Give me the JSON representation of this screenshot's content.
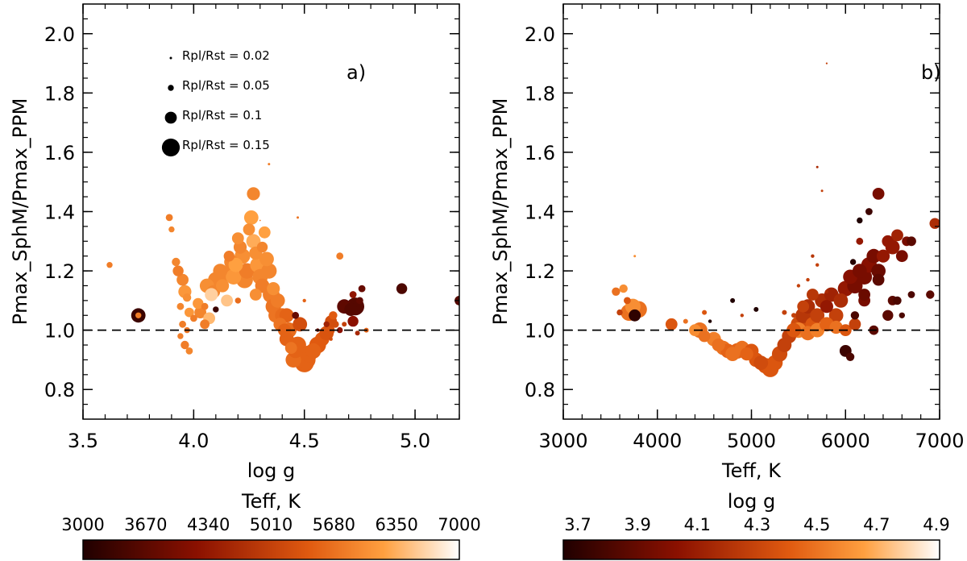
{
  "colors": {
    "axis": "#000000",
    "background": "#ffffff"
  },
  "chart_data": [
    {
      "type": "scatter",
      "panel_label": "a)",
      "xlabel": "log g",
      "ylabel": "Pmax_SphM/Pmax_PPM",
      "xlim": [
        3.5,
        5.2
      ],
      "ylim": [
        0.7,
        2.1
      ],
      "xticks": [
        "3.5",
        "4.0",
        "4.5",
        "5.0"
      ],
      "yticks": [
        "0.8",
        "1.0",
        "1.2",
        "1.4",
        "1.6",
        "1.8",
        "2.0"
      ],
      "reference_line": 1.0,
      "size_legend": [
        {
          "label": "Rpl/Rst  =  0.02",
          "ratio": 0.02
        },
        {
          "label": "Rpl/Rst  =  0.05",
          "ratio": 0.05
        },
        {
          "label": "Rpl/Rst  =  0.1",
          "ratio": 0.1
        },
        {
          "label": "Rpl/Rst  =  0.15",
          "ratio": 0.15
        }
      ],
      "colorbar": {
        "label": "Teff, K",
        "ticks": [
          "3000",
          "3670",
          "4340",
          "5010",
          "5680",
          "6350",
          "7000"
        ],
        "range": [
          3000,
          7000
        ]
      },
      "points": [
        [
          3.62,
          1.22,
          0.05,
          5800
        ],
        [
          3.75,
          1.05,
          0.12,
          3300
        ],
        [
          3.75,
          1.05,
          0.05,
          5800
        ],
        [
          3.89,
          1.38,
          0.06,
          5800
        ],
        [
          3.9,
          1.34,
          0.05,
          5900
        ],
        [
          3.92,
          1.23,
          0.07,
          5900
        ],
        [
          3.93,
          1.2,
          0.09,
          5800
        ],
        [
          3.95,
          1.17,
          0.1,
          5900
        ],
        [
          3.96,
          1.13,
          0.11,
          6100
        ],
        [
          3.97,
          1.11,
          0.07,
          6000
        ],
        [
          3.94,
          1.08,
          0.06,
          5900
        ],
        [
          3.98,
          1.06,
          0.08,
          6100
        ],
        [
          3.95,
          1.02,
          0.06,
          5800
        ],
        [
          3.94,
          0.98,
          0.05,
          5800
        ],
        [
          3.96,
          0.95,
          0.07,
          5800
        ],
        [
          3.98,
          0.93,
          0.06,
          5900
        ],
        [
          3.97,
          1.0,
          0.05,
          5700
        ],
        [
          4.0,
          1.04,
          0.06,
          5800
        ],
        [
          4.02,
          1.09,
          0.09,
          6100
        ],
        [
          4.03,
          1.06,
          0.1,
          5900
        ],
        [
          4.05,
          1.02,
          0.08,
          5800
        ],
        [
          4.07,
          1.04,
          0.1,
          6400
        ],
        [
          4.06,
          1.15,
          0.12,
          6000
        ],
        [
          4.09,
          1.13,
          0.11,
          5900
        ],
        [
          4.1,
          1.17,
          0.13,
          5900
        ],
        [
          4.12,
          1.2,
          0.12,
          5900
        ],
        [
          4.13,
          1.15,
          0.11,
          6000
        ],
        [
          4.15,
          1.19,
          0.13,
          5900
        ],
        [
          4.16,
          1.25,
          0.09,
          5800
        ],
        [
          4.17,
          1.23,
          0.12,
          5900
        ],
        [
          4.18,
          1.18,
          0.13,
          6100
        ],
        [
          4.19,
          1.22,
          0.12,
          6200
        ],
        [
          4.2,
          1.31,
          0.1,
          6000
        ],
        [
          4.21,
          1.28,
          0.11,
          5900
        ],
        [
          4.22,
          1.25,
          0.13,
          6000
        ],
        [
          4.23,
          1.17,
          0.14,
          5900
        ],
        [
          4.24,
          1.2,
          0.13,
          5800
        ],
        [
          4.25,
          1.34,
          0.1,
          6000
        ],
        [
          4.26,
          1.38,
          0.12,
          6200
        ],
        [
          4.27,
          1.46,
          0.11,
          5900
        ],
        [
          4.27,
          1.3,
          0.12,
          6300
        ],
        [
          4.28,
          1.26,
          0.11,
          6000
        ],
        [
          4.29,
          1.22,
          0.13,
          6100
        ],
        [
          4.3,
          1.18,
          0.13,
          5900
        ],
        [
          4.31,
          1.15,
          0.12,
          5800
        ],
        [
          4.31,
          1.28,
          0.09,
          5900
        ],
        [
          4.32,
          1.33,
          0.1,
          6200
        ],
        [
          4.33,
          1.24,
          0.12,
          6000
        ],
        [
          4.34,
          1.2,
          0.13,
          5900
        ],
        [
          4.35,
          1.12,
          0.14,
          5800
        ],
        [
          4.36,
          1.08,
          0.13,
          5700
        ],
        [
          4.37,
          1.05,
          0.12,
          5700
        ],
        [
          4.38,
          1.1,
          0.12,
          5800
        ],
        [
          4.39,
          1.02,
          0.11,
          5700
        ],
        [
          4.4,
          1.05,
          0.12,
          5600
        ],
        [
          4.41,
          1.0,
          0.11,
          5500
        ],
        [
          4.42,
          0.97,
          0.12,
          5500
        ],
        [
          4.43,
          1.0,
          0.13,
          5600
        ],
        [
          4.44,
          0.94,
          0.1,
          5700
        ],
        [
          4.45,
          0.9,
          0.13,
          5600
        ],
        [
          4.46,
          0.93,
          0.12,
          5500
        ],
        [
          4.47,
          0.95,
          0.14,
          5500
        ],
        [
          4.48,
          0.91,
          0.15,
          5600
        ],
        [
          4.5,
          0.89,
          0.16,
          5500
        ],
        [
          4.51,
          0.9,
          0.15,
          5500
        ],
        [
          4.52,
          0.92,
          0.14,
          5500
        ],
        [
          4.54,
          0.93,
          0.13,
          5500
        ],
        [
          4.56,
          0.95,
          0.14,
          5400
        ],
        [
          4.58,
          0.97,
          0.12,
          5400
        ],
        [
          4.6,
          0.99,
          0.12,
          5300
        ],
        [
          4.61,
          1.0,
          0.1,
          5300
        ],
        [
          4.62,
          1.03,
          0.1,
          5200
        ],
        [
          4.63,
          1.05,
          0.07,
          5400
        ],
        [
          4.64,
          1.02,
          0.06,
          5200
        ],
        [
          4.66,
          1.0,
          0.05,
          4200
        ],
        [
          4.68,
          1.08,
          0.12,
          3700
        ],
        [
          4.71,
          1.07,
          0.11,
          3600
        ],
        [
          4.72,
          1.03,
          0.09,
          4200
        ],
        [
          4.72,
          1.12,
          0.06,
          4300
        ],
        [
          4.76,
          1.14,
          0.06,
          3800
        ],
        [
          4.75,
          1.1,
          0.06,
          3700
        ],
        [
          4.73,
          1.08,
          0.15,
          3600
        ],
        [
          4.74,
          0.99,
          0.04,
          4600
        ],
        [
          4.6,
          1.02,
          0.05,
          4500
        ],
        [
          4.94,
          1.14,
          0.09,
          3500
        ],
        [
          5.2,
          1.1,
          0.08,
          3600
        ],
        [
          4.66,
          1.25,
          0.06,
          5800
        ],
        [
          4.1,
          1.07,
          0.05,
          3300
        ],
        [
          4.2,
          1.1,
          0.05,
          5600
        ],
        [
          4.46,
          1.05,
          0.06,
          3800
        ],
        [
          4.48,
          1.02,
          0.12,
          5200
        ],
        [
          4.42,
          1.05,
          0.12,
          5500
        ],
        [
          4.36,
          1.14,
          0.11,
          6000
        ],
        [
          4.28,
          1.12,
          0.1,
          6000
        ],
        [
          4.15,
          1.1,
          0.1,
          6500
        ],
        [
          4.08,
          1.12,
          0.11,
          6600
        ],
        [
          4.05,
          1.08,
          0.06,
          5800
        ],
        [
          4.34,
          1.56,
          0.02,
          5800
        ],
        [
          4.47,
          1.38,
          0.02,
          5700
        ],
        [
          4.5,
          1.1,
          0.03,
          5500
        ],
        [
          4.3,
          1.37,
          0.01,
          5800
        ],
        [
          4.56,
          1.0,
          0.03,
          3900
        ],
        [
          4.62,
          0.97,
          0.03,
          5200
        ],
        [
          4.68,
          1.02,
          0.04,
          5000
        ],
        [
          4.78,
          1.0,
          0.04,
          5500
        ]
      ]
    },
    {
      "type": "scatter",
      "panel_label": "b)",
      "xlabel": "Teff, K",
      "ylabel": "Pmax_SphM/Pmax_PPM",
      "xlim": [
        3000,
        7000
      ],
      "ylim": [
        0.7,
        2.1
      ],
      "xticks": [
        "3000",
        "4000",
        "5000",
        "6000",
        "7000"
      ],
      "yticks": [
        "0.8",
        "1.0",
        "1.2",
        "1.4",
        "1.6",
        "1.8",
        "2.0"
      ],
      "reference_line": 1.0,
      "colorbar": {
        "label": "log g",
        "ticks": [
          "3.7",
          "3.9",
          "4.1",
          "4.3",
          "4.5",
          "4.7",
          "4.9"
        ],
        "range": [
          3.7,
          4.9
        ]
      },
      "points": [
        [
          3560,
          1.13,
          0.07,
          4.5
        ],
        [
          3600,
          1.06,
          0.05,
          4.3
        ],
        [
          3640,
          1.14,
          0.07,
          4.6
        ],
        [
          3680,
          1.1,
          0.06,
          4.4
        ],
        [
          3700,
          1.06,
          0.14,
          4.5
        ],
        [
          3740,
          1.08,
          0.13,
          4.6
        ],
        [
          3760,
          1.05,
          0.1,
          3.75
        ],
        [
          3800,
          1.07,
          0.14,
          4.5
        ],
        [
          3760,
          1.25,
          0.02,
          4.6
        ],
        [
          4150,
          1.02,
          0.1,
          4.4
        ],
        [
          4400,
          1.0,
          0.1,
          4.6
        ],
        [
          4450,
          1.0,
          0.13,
          4.5
        ],
        [
          4500,
          0.98,
          0.1,
          4.5
        ],
        [
          4560,
          1.03,
          0.03,
          3.7
        ],
        [
          4600,
          0.97,
          0.12,
          4.55
        ],
        [
          4650,
          0.95,
          0.11,
          4.5
        ],
        [
          4700,
          0.94,
          0.12,
          4.5
        ],
        [
          4750,
          0.93,
          0.12,
          4.45
        ],
        [
          4800,
          0.92,
          0.12,
          4.5
        ],
        [
          4850,
          0.93,
          0.13,
          4.45
        ],
        [
          4900,
          0.94,
          0.12,
          4.5
        ],
        [
          4950,
          0.92,
          0.11,
          4.45
        ],
        [
          5000,
          0.93,
          0.12,
          4.4
        ],
        [
          5050,
          0.9,
          0.12,
          4.4
        ],
        [
          5100,
          0.89,
          0.12,
          4.35
        ],
        [
          5150,
          0.88,
          0.13,
          4.4
        ],
        [
          5200,
          0.87,
          0.14,
          4.4
        ],
        [
          5250,
          0.89,
          0.13,
          4.4
        ],
        [
          5300,
          0.92,
          0.13,
          4.35
        ],
        [
          5350,
          0.95,
          0.12,
          4.3
        ],
        [
          5400,
          0.98,
          0.12,
          4.3
        ],
        [
          5450,
          1.0,
          0.12,
          4.4
        ],
        [
          5500,
          1.02,
          0.13,
          4.35
        ],
        [
          5550,
          1.05,
          0.13,
          4.25
        ],
        [
          5600,
          1.08,
          0.12,
          4.2
        ],
        [
          5650,
          1.02,
          0.12,
          4.4
        ],
        [
          5700,
          1.05,
          0.12,
          4.3
        ],
        [
          5750,
          1.1,
          0.12,
          4.2
        ],
        [
          5800,
          1.08,
          0.11,
          4.1
        ],
        [
          5850,
          1.12,
          0.12,
          4.15
        ],
        [
          5900,
          1.05,
          0.12,
          4.3
        ],
        [
          5950,
          1.1,
          0.12,
          4.2
        ],
        [
          6000,
          1.14,
          0.13,
          4.1
        ],
        [
          6050,
          1.18,
          0.12,
          4.05
        ],
        [
          6100,
          1.15,
          0.13,
          4.0
        ],
        [
          6150,
          1.2,
          0.12,
          4.0
        ],
        [
          6200,
          1.18,
          0.13,
          4.0
        ],
        [
          6250,
          1.22,
          0.13,
          4.05
        ],
        [
          6300,
          1.25,
          0.12,
          4.0
        ],
        [
          6350,
          1.2,
          0.12,
          3.95
        ],
        [
          6400,
          1.25,
          0.11,
          4.1
        ],
        [
          6450,
          1.3,
          0.1,
          4.1
        ],
        [
          6500,
          1.28,
          0.12,
          4.1
        ],
        [
          6550,
          1.32,
          0.1,
          4.15
        ],
        [
          6600,
          1.25,
          0.1,
          4.0
        ],
        [
          6650,
          1.3,
          0.08,
          4.0
        ],
        [
          6700,
          1.3,
          0.08,
          3.9
        ],
        [
          6950,
          1.36,
          0.09,
          4.2
        ],
        [
          6900,
          1.12,
          0.07,
          3.9
        ],
        [
          6350,
          1.46,
          0.1,
          4.0
        ],
        [
          6250,
          1.4,
          0.06,
          3.8
        ],
        [
          6150,
          1.37,
          0.05,
          3.7
        ],
        [
          6500,
          1.1,
          0.08,
          3.9
        ],
        [
          6450,
          1.05,
          0.09,
          3.9
        ],
        [
          6300,
          1.0,
          0.08,
          3.9
        ],
        [
          6100,
          1.05,
          0.07,
          3.85
        ],
        [
          6000,
          0.93,
          0.1,
          3.8
        ],
        [
          6050,
          0.91,
          0.07,
          3.85
        ],
        [
          6550,
          1.1,
          0.07,
          3.85
        ],
        [
          6700,
          1.12,
          0.06,
          3.85
        ],
        [
          6600,
          1.05,
          0.05,
          3.85
        ],
        [
          6200,
          1.1,
          0.1,
          4.0
        ],
        [
          6150,
          1.3,
          0.06,
          4.1
        ],
        [
          6080,
          1.23,
          0.05,
          3.72
        ],
        [
          5800,
          1.9,
          0.015,
          4.3
        ],
        [
          5700,
          1.55,
          0.02,
          4.2
        ],
        [
          5750,
          1.47,
          0.02,
          4.3
        ],
        [
          5650,
          1.25,
          0.03,
          4.25
        ],
        [
          5700,
          1.22,
          0.03,
          4.3
        ],
        [
          5500,
          1.15,
          0.03,
          4.3
        ],
        [
          5600,
          1.17,
          0.03,
          4.3
        ],
        [
          5800,
          1.13,
          0.03,
          4.2
        ],
        [
          4900,
          1.05,
          0.03,
          4.3
        ],
        [
          4800,
          1.1,
          0.04,
          3.7
        ],
        [
          5050,
          1.07,
          0.04,
          3.7
        ],
        [
          4500,
          1.06,
          0.04,
          4.4
        ],
        [
          4300,
          1.03,
          0.04,
          4.5
        ],
        [
          5450,
          1.05,
          0.04,
          4.3
        ],
        [
          5350,
          1.06,
          0.04,
          4.3
        ],
        [
          5500,
          1.0,
          0.13,
          4.55
        ],
        [
          5600,
          0.99,
          0.12,
          4.5
        ],
        [
          5700,
          1.0,
          0.12,
          4.55
        ],
        [
          5800,
          1.02,
          0.12,
          4.45
        ],
        [
          5900,
          1.01,
          0.11,
          4.5
        ],
        [
          6000,
          1.0,
          0.1,
          4.4
        ],
        [
          6100,
          1.02,
          0.1,
          4.3
        ],
        [
          5650,
          1.12,
          0.1,
          4.25
        ],
        [
          5550,
          1.08,
          0.1,
          4.3
        ],
        [
          6200,
          1.12,
          0.1,
          3.95
        ],
        [
          6350,
          1.17,
          0.1,
          3.9
        ]
      ]
    }
  ]
}
